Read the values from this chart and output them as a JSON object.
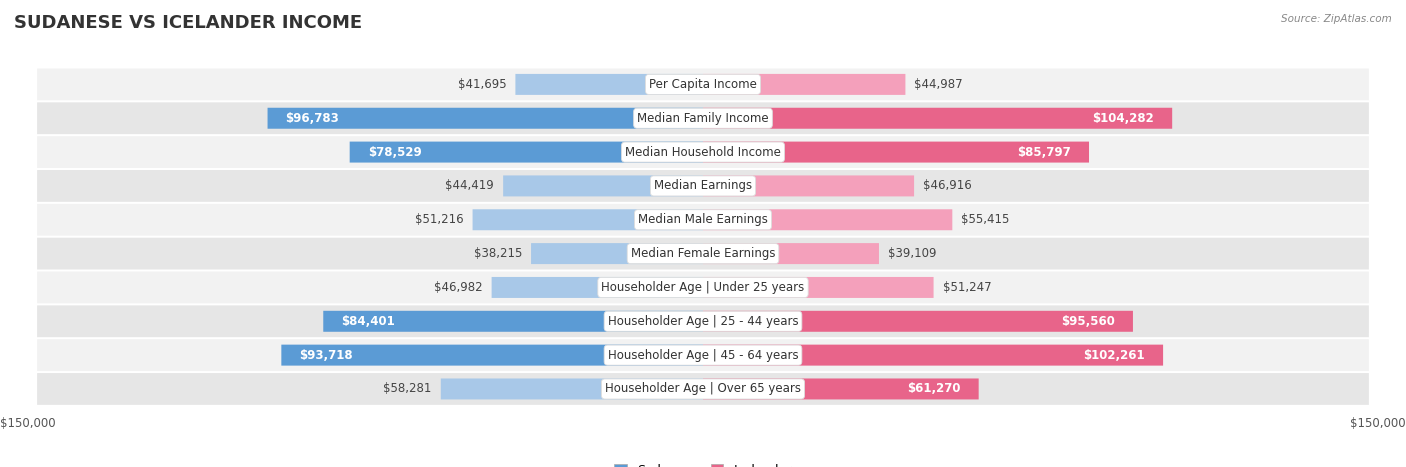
{
  "title": "SUDANESE VS ICELANDER INCOME",
  "source": "Source: ZipAtlas.com",
  "categories": [
    "Per Capita Income",
    "Median Family Income",
    "Median Household Income",
    "Median Earnings",
    "Median Male Earnings",
    "Median Female Earnings",
    "Householder Age | Under 25 years",
    "Householder Age | 25 - 44 years",
    "Householder Age | 45 - 64 years",
    "Householder Age | Over 65 years"
  ],
  "sudanese": [
    41695,
    96783,
    78529,
    44419,
    51216,
    38215,
    46982,
    84401,
    93718,
    58281
  ],
  "icelander": [
    44987,
    104282,
    85797,
    46916,
    55415,
    39109,
    51247,
    95560,
    102261,
    61270
  ],
  "sudanese_labels": [
    "$41,695",
    "$96,783",
    "$78,529",
    "$44,419",
    "$51,216",
    "$38,215",
    "$46,982",
    "$84,401",
    "$93,718",
    "$58,281"
  ],
  "icelander_labels": [
    "$44,987",
    "$104,282",
    "$85,797",
    "$46,916",
    "$55,415",
    "$39,109",
    "$51,247",
    "$95,560",
    "$102,261",
    "$61,270"
  ],
  "max_val": 150000,
  "sudanese_color_large": "#5B9BD5",
  "sudanese_color_small": "#A8C8E8",
  "icelander_color_large": "#E8648A",
  "icelander_color_small": "#F4A0BB",
  "row_bg_light": "#f2f2f2",
  "row_bg_dark": "#e6e6e6",
  "title_fontsize": 13,
  "label_fontsize": 8.5,
  "cat_fontsize": 8.5,
  "axis_label_fontsize": 8.5,
  "inside_threshold": 60000
}
